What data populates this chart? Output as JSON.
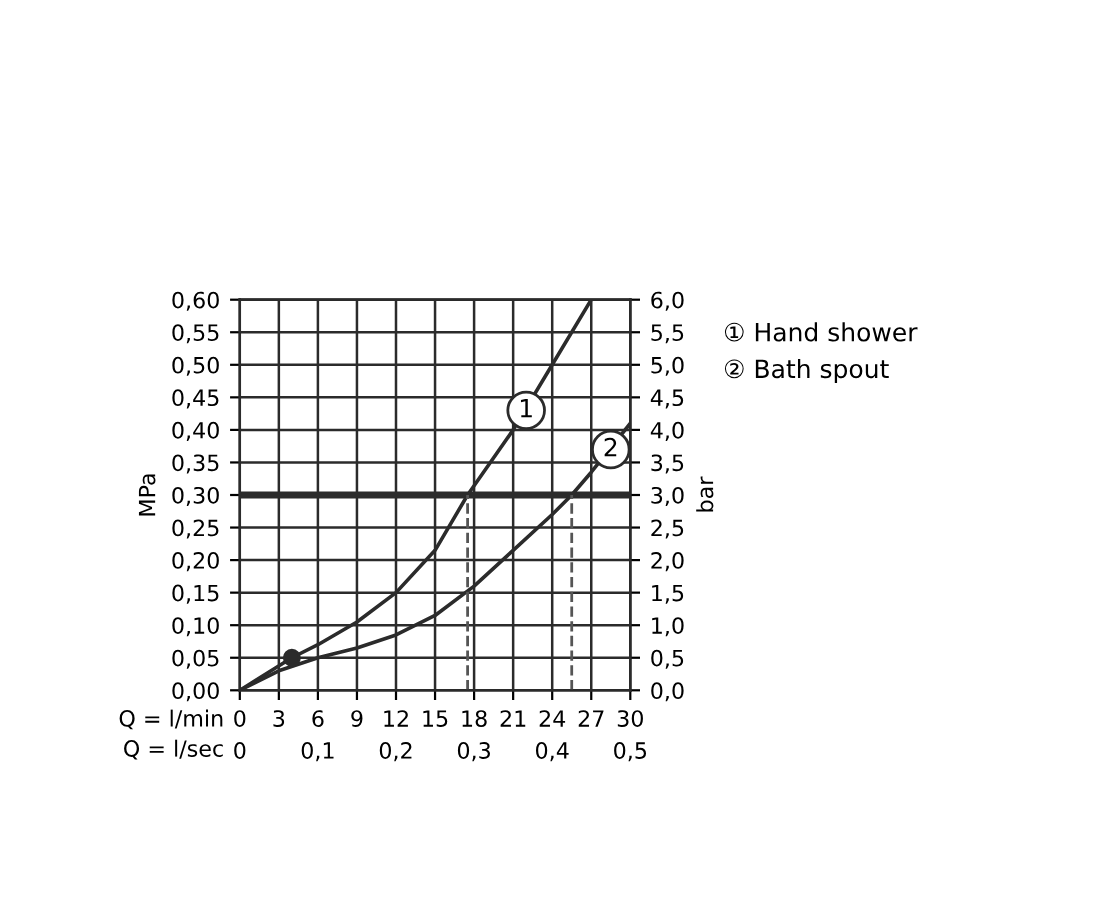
{
  "chart_data": {
    "type": "line",
    "xlabel": "Q = l/min",
    "x2label": "Q = l/sec",
    "ylabel": "MPa",
    "y2label": "bar",
    "xlim": [
      0,
      30
    ],
    "xticks": [
      0,
      3,
      6,
      9,
      12,
      15,
      18,
      21,
      24,
      27,
      30
    ],
    "x2lim": [
      0,
      0.5
    ],
    "x2ticks": [
      0,
      {
        "value": 0.1,
        "label": "0,1"
      },
      {
        "value": 0.2,
        "label": "0,2"
      },
      {
        "value": 0.3,
        "label": "0,3"
      },
      {
        "value": 0.4,
        "label": "0,4"
      },
      {
        "value": 0.5,
        "label": "0,5"
      }
    ],
    "ylim": [
      0,
      0.6
    ],
    "yticks": [
      {
        "value": 0,
        "label": "0,00"
      },
      {
        "value": 0.05,
        "label": "0,05"
      },
      {
        "value": 0.1,
        "label": "0,10"
      },
      {
        "value": 0.15,
        "label": "0,15"
      },
      {
        "value": 0.2,
        "label": "0,20"
      },
      {
        "value": 0.25,
        "label": "0,25"
      },
      {
        "value": 0.3,
        "label": "0,30"
      },
      {
        "value": 0.35,
        "label": "0,35"
      },
      {
        "value": 0.4,
        "label": "0,40"
      },
      {
        "value": 0.45,
        "label": "0,45"
      },
      {
        "value": 0.5,
        "label": "0,50"
      },
      {
        "value": 0.55,
        "label": "0,55"
      },
      {
        "value": 0.6,
        "label": "0,60"
      }
    ],
    "y2lim": [
      0,
      6
    ],
    "y2ticks": [
      {
        "value": 0,
        "label": "0,0"
      },
      {
        "value": 0.5,
        "label": "0,5"
      },
      {
        "value": 1,
        "label": "1,0"
      },
      {
        "value": 1.5,
        "label": "1,5"
      },
      {
        "value": 2,
        "label": "2,0"
      },
      {
        "value": 2.5,
        "label": "2,5"
      },
      {
        "value": 3,
        "label": "3,0"
      },
      {
        "value": 3.5,
        "label": "3,5"
      },
      {
        "value": 4,
        "label": "4,0"
      },
      {
        "value": 4.5,
        "label": "4,5"
      },
      {
        "value": 5,
        "label": "5,0"
      },
      {
        "value": 5.5,
        "label": "5,5"
      },
      {
        "value": 6,
        "label": "6,0"
      }
    ],
    "grid": true,
    "legend": "top right",
    "series": [
      {
        "name": "① Hand shower",
        "color": "#2b2b2b",
        "x": [
          0,
          4,
          6,
          9,
          12,
          15,
          17.5,
          21,
          24,
          27
        ],
        "values": [
          0,
          0.05,
          0.07,
          0.105,
          0.15,
          0.215,
          0.3,
          0.4,
          0.5,
          0.6
        ]
      },
      {
        "name": "② Bath spout",
        "color": "#2b2b2b",
        "x": [
          0,
          3,
          6,
          9,
          12,
          15,
          18,
          21,
          24,
          25.5,
          27,
          30
        ],
        "values": [
          0,
          0.03,
          0.05,
          0.065,
          0.085,
          0.115,
          0.16,
          0.215,
          0.27,
          0.3,
          0.335,
          0.41
        ]
      },
      {
        "type": "scatter",
        "color": "#2b2b2b",
        "marker": "circle",
        "x": [
          4
        ],
        "values": [
          0.05
        ]
      },
      {
        "color": "#555555",
        "line_style": "dashed",
        "x": [
          17.5,
          17.5
        ],
        "values": [
          0,
          0.3
        ]
      },
      {
        "color": "#555555",
        "line_style": "dashed",
        "x": [
          25.5,
          25.5
        ],
        "values": [
          0,
          0.3
        ]
      }
    ],
    "ref_lines": [
      {
        "axis": "y",
        "value": 0.3,
        "color": "#2b2b2b"
      }
    ],
    "annotations": [
      {
        "text": "1",
        "x": 22,
        "y": 0.43
      },
      {
        "text": "2",
        "x": 28.5,
        "y": 0.37
      }
    ]
  }
}
